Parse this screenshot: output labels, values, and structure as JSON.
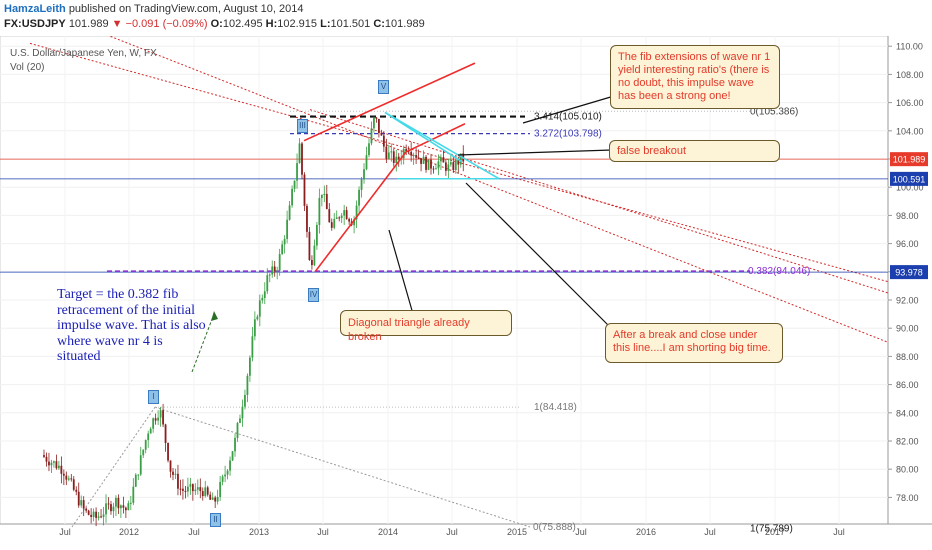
{
  "header": {
    "author": "HamzaLeith",
    "published": "published on TradingView.com, August 10, 2014",
    "symbol": "FX:USDJPY",
    "last": "101.989",
    "change": "▼ −0.091 (−0.09%)",
    "open": "O:",
    "open_v": "102.495",
    "high": "H:",
    "high_v": "102.915",
    "low": "L:",
    "low_v": "101.501",
    "close": "C:",
    "close_v": "101.989"
  },
  "legend": {
    "title": "U.S. Dollar/Japanese Yen, W, FX",
    "indicator": "Vol (20)"
  },
  "annotations": {
    "fib_ext": "The fib extensions of wave nr 1 yield interesting ratio's (there is no doubt, this impulse wave has been a strong one!",
    "false_breakout": "false breakout",
    "diagonal": "Diagonal triangle already broken",
    "shorting": "After a break and close under this line....I am shorting big time.",
    "target": "Target = the 0.382 fib retracement of the initial impulse wave. That is also where wave nr 4 is situated"
  },
  "waves": [
    "I",
    "II",
    "III",
    "IV",
    "V"
  ],
  "colors": {
    "bull": "#3a9e45",
    "bear": "#8a1d1d",
    "red_line": "#ef2b2b",
    "fib_blue": "#3a3ab8",
    "purple": "#8a2ad2",
    "cyan": "#46d9e8",
    "price_badge": "#e63b2a",
    "blue_badge": "#1b3fae",
    "purple_badge": "#1b3fae"
  },
  "chart_data": {
    "type": "candlestick",
    "y_axis_ticks": [
      78,
      80,
      82,
      84,
      86,
      88,
      90,
      92,
      94,
      96,
      98,
      100,
      102,
      104,
      106,
      108,
      110
    ],
    "x_axis_labels": [
      "Jul",
      "2012",
      "Jul",
      "2013",
      "Jul",
      "2014",
      "Jul",
      "2015",
      "Jul",
      "2016",
      "Jul",
      "2017",
      "Jul"
    ],
    "price_labels": [
      {
        "value": "101.989",
        "price": 101.989,
        "kind": "last"
      },
      {
        "value": "100.591",
        "price": 100.591,
        "kind": "level"
      },
      {
        "value": "93.978",
        "price": 93.978,
        "kind": "target"
      }
    ],
    "fib_levels": [
      {
        "label": "3.414(105.010)",
        "price": 105.01
      },
      {
        "label": "3.272(103.798)",
        "price": 103.798
      },
      {
        "label": "0(105.386)",
        "price": 105.386
      },
      {
        "label": "0.382(94.046)",
        "price": 94.046
      },
      {
        "label": "1(84.418)",
        "price": 84.418
      },
      {
        "label": "0(75.888)",
        "price": 75.888
      },
      {
        "label": "1(75.789)",
        "price": 75.789
      }
    ],
    "series_path": [
      {
        "date": "2011-05",
        "price": 81.0
      },
      {
        "date": "2011-07",
        "price": 80.0
      },
      {
        "date": "2011-09",
        "price": 77.0
      },
      {
        "date": "2011-10",
        "price": 76.5
      },
      {
        "date": "2011-12",
        "price": 77.8
      },
      {
        "date": "2012-01",
        "price": 77.0
      },
      {
        "date": "2012-03",
        "price": 83.0
      },
      {
        "date": "2012-04",
        "price": 84.3
      },
      {
        "date": "2012-05",
        "price": 80.0
      },
      {
        "date": "2012-06",
        "price": 78.5
      },
      {
        "date": "2012-08",
        "price": 78.5
      },
      {
        "date": "2012-09",
        "price": 77.5
      },
      {
        "date": "2012-10",
        "price": 79.5
      },
      {
        "date": "2012-11",
        "price": 82.0
      },
      {
        "date": "2012-12",
        "price": 86.0
      },
      {
        "date": "2013-01",
        "price": 91.0
      },
      {
        "date": "2013-02",
        "price": 93.5
      },
      {
        "date": "2013-03",
        "price": 94.5
      },
      {
        "date": "2013-04",
        "price": 98.0
      },
      {
        "date": "2013-05",
        "price": 103.0
      },
      {
        "date": "2013-06",
        "price": 94.0
      },
      {
        "date": "2013-07",
        "price": 100.0
      },
      {
        "date": "2013-08",
        "price": 97.0
      },
      {
        "date": "2013-09",
        "price": 98.5
      },
      {
        "date": "2013-10",
        "price": 97.5
      },
      {
        "date": "2013-11",
        "price": 101.5
      },
      {
        "date": "2013-12",
        "price": 105.0
      },
      {
        "date": "2014-01",
        "price": 102.5
      },
      {
        "date": "2014-02",
        "price": 101.8
      },
      {
        "date": "2014-03",
        "price": 103.0
      },
      {
        "date": "2014-04",
        "price": 102.2
      },
      {
        "date": "2014-05",
        "price": 101.5
      },
      {
        "date": "2014-06",
        "price": 101.8
      },
      {
        "date": "2014-07",
        "price": 101.3
      },
      {
        "date": "2014-08",
        "price": 101.989
      }
    ]
  }
}
